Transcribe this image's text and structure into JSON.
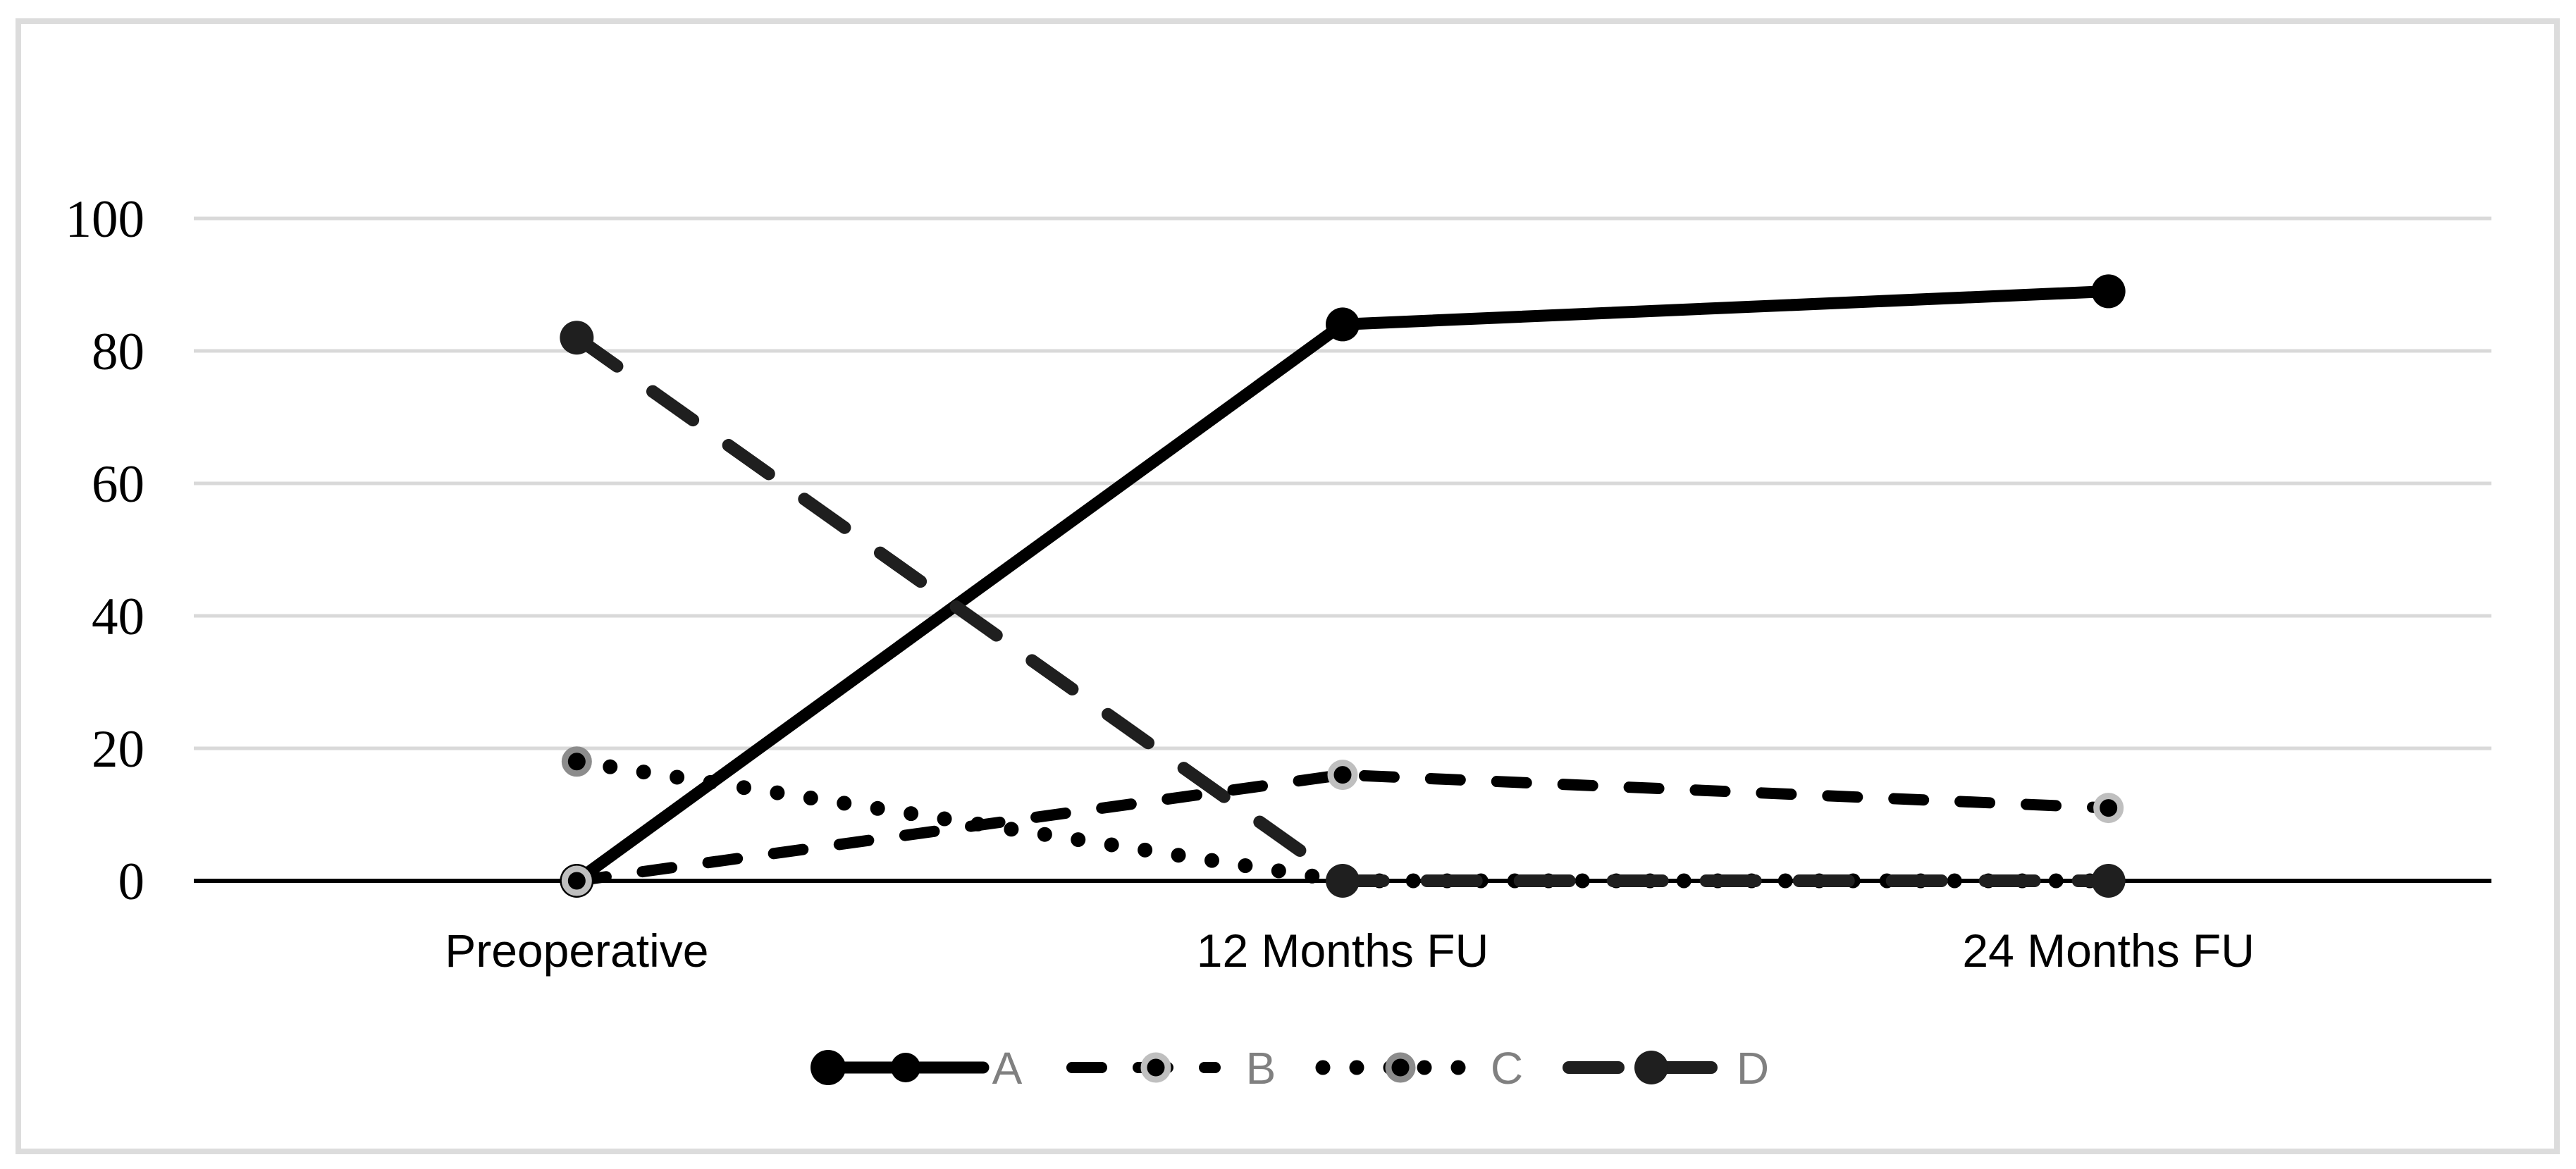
{
  "figure": {
    "background_color": "#ffffff",
    "frame_border_color": "#dcdcdc",
    "gridline_color": "#d9d9d9",
    "axis_color": "#000000",
    "tick_label_color": "#000000",
    "legend_label_color": "#808080"
  },
  "chart_data": {
    "type": "line",
    "title": "",
    "xlabel": "",
    "ylabel": "",
    "categories": [
      "Preoperative",
      "12 Months FU",
      "24 Months FU"
    ],
    "series": [
      {
        "name": "A",
        "values": [
          0,
          84,
          89
        ],
        "line_style": "solid",
        "color": "#000000",
        "marker": "filled-circle"
      },
      {
        "name": "B",
        "values": [
          0,
          16,
          11
        ],
        "line_style": "dashed",
        "color": "#000000",
        "marker": "ringed-circle",
        "ring_color": "#bfbfbf"
      },
      {
        "name": "C",
        "values": [
          18,
          0,
          0
        ],
        "line_style": "dotted",
        "color": "#000000",
        "marker": "ringed-circle",
        "ring_color": "#8c8c8c"
      },
      {
        "name": "D",
        "values": [
          82,
          0,
          0
        ],
        "line_style": "long-dash",
        "color": "#1f1f1f",
        "marker": "filled-circle"
      }
    ],
    "ylim": [
      0,
      100
    ],
    "yticks": [
      0,
      20,
      40,
      60,
      80,
      100
    ],
    "ytick_labels": [
      "0",
      "20",
      "40",
      "60",
      "80",
      "100"
    ],
    "grid": "horizontal-only",
    "legend_position": "bottom",
    "legend_labels": [
      "A",
      "B",
      "C",
      "D"
    ]
  }
}
